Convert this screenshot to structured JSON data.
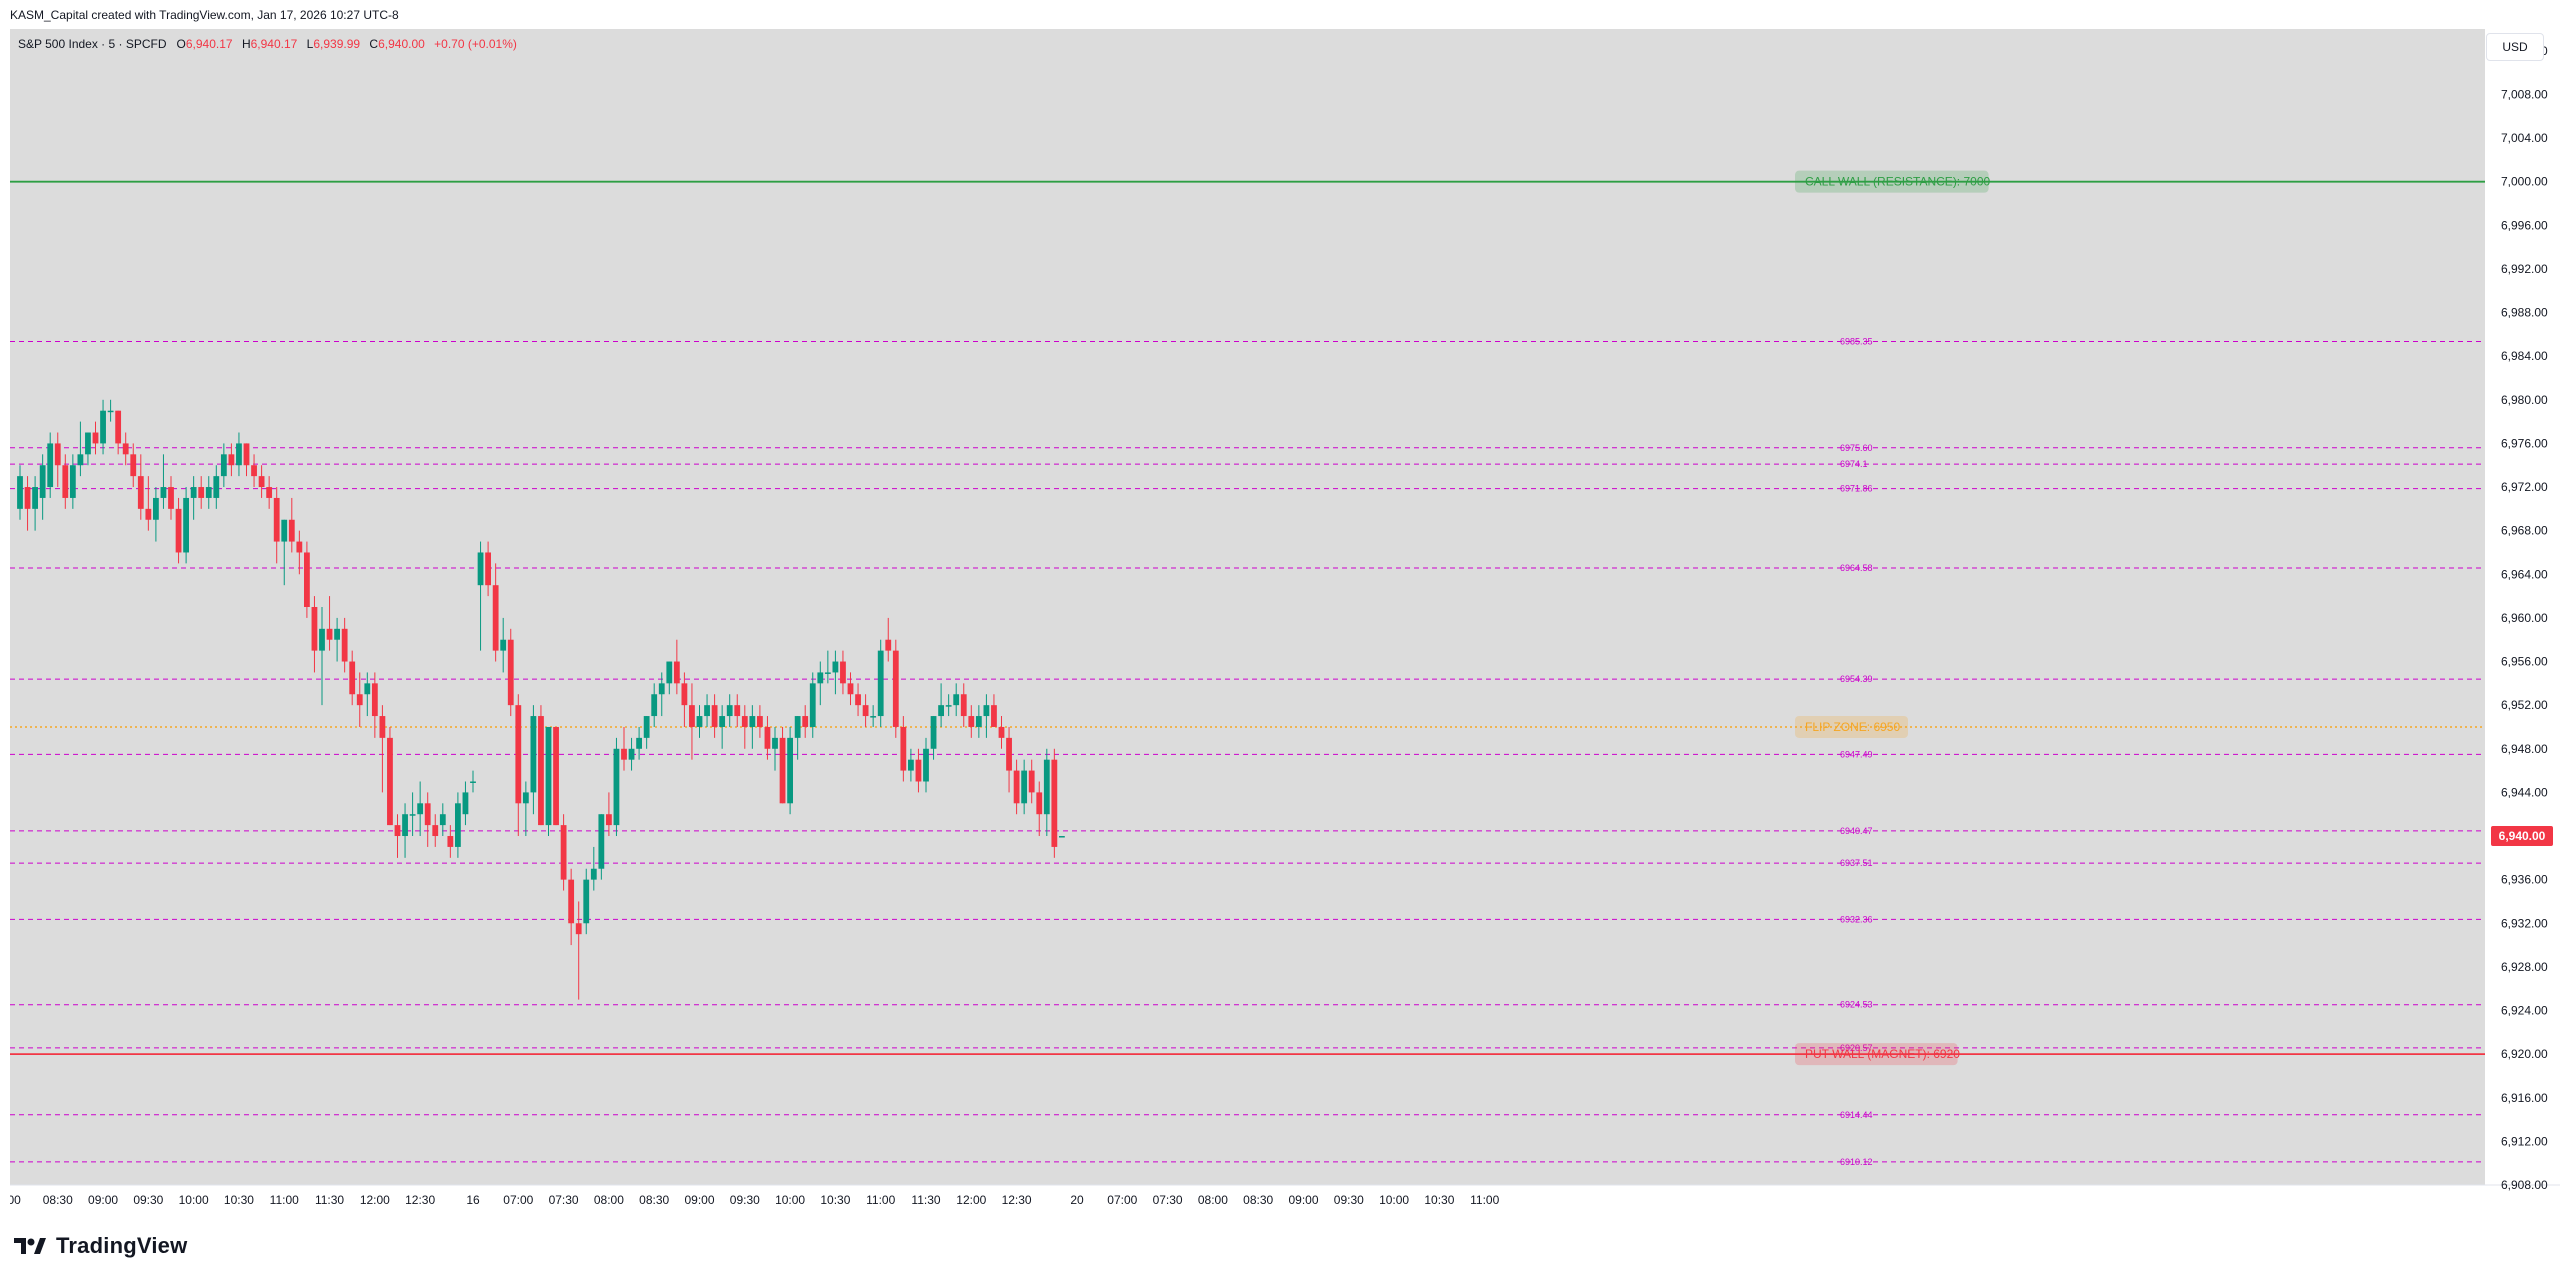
{
  "header": {
    "credit": "KASM_Capital created with TradingView.com, Jan 17, 2026 10:27 UTC-8"
  },
  "legend": {
    "symbol": "S&P 500 Index · 5 · SPCFD",
    "o_label": "O",
    "o_value": "6,940.17",
    "h_label": "H",
    "h_value": "6,940.17",
    "l_label": "L",
    "l_value": "6,939.99",
    "c_label": "C",
    "c_value": "6,940.00",
    "change": "+0.70 (+0.01%)"
  },
  "currency_button": "USD",
  "brand": "TradingView",
  "colors": {
    "up": "#089981",
    "down": "#f23645",
    "background": "#dcdcdc",
    "level_line": "#cc00cc",
    "call_wall": "#2e9e44",
    "put_wall": "#f23645",
    "flip_zone": "#f5a623"
  },
  "chart_data": {
    "type": "candlestick",
    "ylim": [
      6908,
      7014
    ],
    "yticks": [
      "6,908.00",
      "6,912.00",
      "6,916.00",
      "6,920.00",
      "6,924.00",
      "6,928.00",
      "6,932.00",
      "6,936.00",
      "6,940.00",
      "6,944.00",
      "6,948.00",
      "6,952.00",
      "6,956.00",
      "6,960.00",
      "6,964.00",
      "6,968.00",
      "6,972.00",
      "6,976.00",
      "6,980.00",
      "6,984.00",
      "6,988.00",
      "6,992.00",
      "6,996.00",
      "7,000.00",
      "7,004.00",
      "7,008.00",
      "7,012.00"
    ],
    "ytick_values": [
      6908,
      6912,
      6916,
      6920,
      6924,
      6928,
      6932,
      6936,
      6940,
      6944,
      6948,
      6952,
      6956,
      6960,
      6964,
      6968,
      6972,
      6976,
      6980,
      6984,
      6988,
      6992,
      6996,
      7000,
      7004,
      7008,
      7012
    ],
    "xticks": [
      {
        "i": -1,
        "label": ":00"
      },
      {
        "i": 5,
        "label": "08:30"
      },
      {
        "i": 11,
        "label": "09:00"
      },
      {
        "i": 17,
        "label": "09:30"
      },
      {
        "i": 23,
        "label": "10:00"
      },
      {
        "i": 29,
        "label": "10:30"
      },
      {
        "i": 35,
        "label": "11:00"
      },
      {
        "i": 41,
        "label": "11:30"
      },
      {
        "i": 47,
        "label": "12:00"
      },
      {
        "i": 53,
        "label": "12:30"
      },
      {
        "i": 60,
        "label": "16"
      },
      {
        "i": 66,
        "label": "07:00"
      },
      {
        "i": 72,
        "label": "07:30"
      },
      {
        "i": 78,
        "label": "08:00"
      },
      {
        "i": 84,
        "label": "08:30"
      },
      {
        "i": 90,
        "label": "09:00"
      },
      {
        "i": 96,
        "label": "09:30"
      },
      {
        "i": 102,
        "label": "10:00"
      },
      {
        "i": 108,
        "label": "10:30"
      },
      {
        "i": 114,
        "label": "11:00"
      },
      {
        "i": 120,
        "label": "11:30"
      },
      {
        "i": 126,
        "label": "12:00"
      },
      {
        "i": 132,
        "label": "12:30"
      },
      {
        "i": 140,
        "label": "20"
      },
      {
        "i": 146,
        "label": "07:00"
      },
      {
        "i": 152,
        "label": "07:30"
      },
      {
        "i": 158,
        "label": "08:00"
      },
      {
        "i": 164,
        "label": "08:30"
      },
      {
        "i": 170,
        "label": "09:00"
      },
      {
        "i": 176,
        "label": "09:30"
      },
      {
        "i": 182,
        "label": "10:00"
      },
      {
        "i": 188,
        "label": "10:30"
      },
      {
        "i": 194,
        "label": "11:00"
      }
    ],
    "last_price": 6940.0,
    "last_price_label": "6,940.00",
    "levels": [
      {
        "value": 6985.35,
        "label": "6985.35"
      },
      {
        "value": 6975.6,
        "label": "6975.60"
      },
      {
        "value": 6974.1,
        "label": "6974.1"
      },
      {
        "value": 6971.86,
        "label": "6971.86"
      },
      {
        "value": 6964.58,
        "label": "6964.58"
      },
      {
        "value": 6954.39,
        "label": "6954.39"
      },
      {
        "value": 6947.49,
        "label": "6947.49"
      },
      {
        "value": 6940.47,
        "label": "6940.47"
      },
      {
        "value": 6937.51,
        "label": "6937.51"
      },
      {
        "value": 6932.36,
        "label": "6932.36"
      },
      {
        "value": 6924.53,
        "label": "6924.53"
      },
      {
        "value": 6920.57,
        "label": "6920.57"
      },
      {
        "value": 6914.44,
        "label": "6914.44"
      },
      {
        "value": 6910.12,
        "label": "6910.12"
      }
    ],
    "walls": [
      {
        "value": 7000,
        "label": "CALL WALL (RESISTANCE): 7000",
        "style": "solid",
        "color": "#2e9e44"
      },
      {
        "value": 6950,
        "label": "FLIP ZONE: 6950",
        "style": "dotted",
        "color": "#f5a623"
      },
      {
        "value": 6920,
        "label": "PUT WALL (MAGNET): 6920",
        "style": "solid",
        "color": "#f23645"
      }
    ],
    "candles": [
      {
        "o": 6970,
        "h": 6974,
        "l": 6969,
        "c": 6973
      },
      {
        "o": 6972,
        "h": 6973,
        "l": 6968,
        "c": 6970
      },
      {
        "o": 6970,
        "h": 6973,
        "l": 6968,
        "c": 6972
      },
      {
        "o": 6971,
        "h": 6975,
        "l": 6969,
        "c": 6974
      },
      {
        "o": 6972,
        "h": 6977,
        "l": 6971,
        "c": 6976
      },
      {
        "o": 6976,
        "h": 6977,
        "l": 6972,
        "c": 6974
      },
      {
        "o": 6974,
        "h": 6975,
        "l": 6970,
        "c": 6971
      },
      {
        "o": 6971,
        "h": 6975,
        "l": 6970,
        "c": 6974
      },
      {
        "o": 6974,
        "h": 6978,
        "l": 6973,
        "c": 6975
      },
      {
        "o": 6975,
        "h": 6977,
        "l": 6974,
        "c": 6977
      },
      {
        "o": 6977,
        "h": 6978,
        "l": 6975,
        "c": 6976
      },
      {
        "o": 6976,
        "h": 6980,
        "l": 6975,
        "c": 6979
      },
      {
        "o": 6979,
        "h": 6980,
        "l": 6978,
        "c": 6979
      },
      {
        "o": 6979,
        "h": 6979,
        "l": 6975,
        "c": 6976
      },
      {
        "o": 6976,
        "h": 6977,
        "l": 6974,
        "c": 6975
      },
      {
        "o": 6975,
        "h": 6976,
        "l": 6972,
        "c": 6973
      },
      {
        "o": 6973,
        "h": 6975,
        "l": 6969,
        "c": 6970
      },
      {
        "o": 6970,
        "h": 6973,
        "l": 6968,
        "c": 6969
      },
      {
        "o": 6969,
        "h": 6972,
        "l": 6967,
        "c": 6971
      },
      {
        "o": 6971,
        "h": 6975,
        "l": 6970,
        "c": 6972
      },
      {
        "o": 6972,
        "h": 6973,
        "l": 6969,
        "c": 6970
      },
      {
        "o": 6970,
        "h": 6971,
        "l": 6965,
        "c": 6966
      },
      {
        "o": 6966,
        "h": 6972,
        "l": 6965,
        "c": 6971
      },
      {
        "o": 6971,
        "h": 6973,
        "l": 6969,
        "c": 6972
      },
      {
        "o": 6972,
        "h": 6973,
        "l": 6970,
        "c": 6971
      },
      {
        "o": 6971,
        "h": 6973,
        "l": 6970,
        "c": 6972
      },
      {
        "o": 6971,
        "h": 6974,
        "l": 6970,
        "c": 6973
      },
      {
        "o": 6973,
        "h": 6976,
        "l": 6972,
        "c": 6975
      },
      {
        "o": 6975,
        "h": 6976,
        "l": 6973,
        "c": 6974
      },
      {
        "o": 6974,
        "h": 6977,
        "l": 6973,
        "c": 6976
      },
      {
        "o": 6976,
        "h": 6976,
        "l": 6973,
        "c": 6974
      },
      {
        "o": 6974,
        "h": 6975,
        "l": 6972,
        "c": 6973
      },
      {
        "o": 6973,
        "h": 6974,
        "l": 6971,
        "c": 6972
      },
      {
        "o": 6972,
        "h": 6973,
        "l": 6970,
        "c": 6971
      },
      {
        "o": 6971,
        "h": 6972,
        "l": 6965,
        "c": 6967
      },
      {
        "o": 6967,
        "h": 6969,
        "l": 6963,
        "c": 6969
      },
      {
        "o": 6969,
        "h": 6971,
        "l": 6966,
        "c": 6967
      },
      {
        "o": 6967,
        "h": 6968,
        "l": 6964,
        "c": 6966
      },
      {
        "o": 6966,
        "h": 6967,
        "l": 6960,
        "c": 6961
      },
      {
        "o": 6961,
        "h": 6962,
        "l": 6955,
        "c": 6957
      },
      {
        "o": 6957,
        "h": 6961,
        "l": 6952,
        "c": 6959
      },
      {
        "o": 6959,
        "h": 6962,
        "l": 6957,
        "c": 6958
      },
      {
        "o": 6958,
        "h": 6960,
        "l": 6956,
        "c": 6959
      },
      {
        "o": 6959,
        "h": 6960,
        "l": 6955,
        "c": 6956
      },
      {
        "o": 6956,
        "h": 6957,
        "l": 6952,
        "c": 6953
      },
      {
        "o": 6953,
        "h": 6955,
        "l": 6950,
        "c": 6952
      },
      {
        "o": 6953,
        "h": 6955,
        "l": 6951,
        "c": 6954
      },
      {
        "o": 6954,
        "h": 6955,
        "l": 6949,
        "c": 6951
      },
      {
        "o": 6951,
        "h": 6952,
        "l": 6944,
        "c": 6949
      },
      {
        "o": 6949,
        "h": 6950,
        "l": 6941,
        "c": 6941
      },
      {
        "o": 6941,
        "h": 6942,
        "l": 6938,
        "c": 6940
      },
      {
        "o": 6940,
        "h": 6943,
        "l": 6938,
        "c": 6942
      },
      {
        "o": 6942,
        "h": 6944,
        "l": 6940,
        "c": 6942
      },
      {
        "o": 6942,
        "h": 6945,
        "l": 6940,
        "c": 6943
      },
      {
        "o": 6943,
        "h": 6944,
        "l": 6939,
        "c": 6941
      },
      {
        "o": 6941,
        "h": 6942,
        "l": 6939,
        "c": 6940
      },
      {
        "o": 6941,
        "h": 6943,
        "l": 6940,
        "c": 6942
      },
      {
        "o": 6940,
        "h": 6941,
        "l": 6938,
        "c": 6939
      },
      {
        "o": 6939,
        "h": 6944,
        "l": 6938,
        "c": 6943
      },
      {
        "o": 6942,
        "h": 6945,
        "l": 6941,
        "c": 6944
      },
      {
        "o": 6945,
        "h": 6946,
        "l": 6944,
        "c": 6945
      },
      {
        "o": 6963,
        "h": 6967,
        "l": 6957,
        "c": 6966
      },
      {
        "o": 6966,
        "h": 6967,
        "l": 6962,
        "c": 6963
      },
      {
        "o": 6963,
        "h": 6965,
        "l": 6956,
        "c": 6957
      },
      {
        "o": 6957,
        "h": 6960,
        "l": 6955,
        "c": 6958
      },
      {
        "o": 6958,
        "h": 6959,
        "l": 6951,
        "c": 6952
      },
      {
        "o": 6952,
        "h": 6953,
        "l": 6940,
        "c": 6943
      },
      {
        "o": 6943,
        "h": 6945,
        "l": 6940,
        "c": 6944
      },
      {
        "o": 6944,
        "h": 6952,
        "l": 6942,
        "c": 6951
      },
      {
        "o": 6951,
        "h": 6952,
        "l": 6941,
        "c": 6941
      },
      {
        "o": 6941,
        "h": 6950,
        "l": 6940,
        "c": 6950
      },
      {
        "o": 6950,
        "h": 6950,
        "l": 6941,
        "c": 6941
      },
      {
        "o": 6941,
        "h": 6942,
        "l": 6935,
        "c": 6936
      },
      {
        "o": 6936,
        "h": 6937,
        "l": 6930,
        "c": 6932
      },
      {
        "o": 6932,
        "h": 6934,
        "l": 6925,
        "c": 6931
      },
      {
        "o": 6932,
        "h": 6937,
        "l": 6931,
        "c": 6936
      },
      {
        "o": 6936,
        "h": 6939,
        "l": 6935,
        "c": 6937
      },
      {
        "o": 6937,
        "h": 6942,
        "l": 6936,
        "c": 6942
      },
      {
        "o": 6942,
        "h": 6944,
        "l": 6940,
        "c": 6941
      },
      {
        "o": 6941,
        "h": 6949,
        "l": 6940,
        "c": 6948
      },
      {
        "o": 6948,
        "h": 6950,
        "l": 6946,
        "c": 6947
      },
      {
        "o": 6947,
        "h": 6949,
        "l": 6946,
        "c": 6948
      },
      {
        "o": 6948,
        "h": 6950,
        "l": 6947,
        "c": 6949
      },
      {
        "o": 6949,
        "h": 6951,
        "l": 6948,
        "c": 6951
      },
      {
        "o": 6951,
        "h": 6954,
        "l": 6950,
        "c": 6953
      },
      {
        "o": 6953,
        "h": 6955,
        "l": 6951,
        "c": 6954
      },
      {
        "o": 6954,
        "h": 6956,
        "l": 6953,
        "c": 6956
      },
      {
        "o": 6956,
        "h": 6958,
        "l": 6953,
        "c": 6954
      },
      {
        "o": 6954,
        "h": 6955,
        "l": 6950,
        "c": 6952
      },
      {
        "o": 6952,
        "h": 6954,
        "l": 6947,
        "c": 6950
      },
      {
        "o": 6950,
        "h": 6952,
        "l": 6949,
        "c": 6951
      },
      {
        "o": 6951,
        "h": 6953,
        "l": 6950,
        "c": 6952
      },
      {
        "o": 6952,
        "h": 6953,
        "l": 6949,
        "c": 6950
      },
      {
        "o": 6950,
        "h": 6952,
        "l": 6948,
        "c": 6951
      },
      {
        "o": 6951,
        "h": 6953,
        "l": 6950,
        "c": 6952
      },
      {
        "o": 6952,
        "h": 6953,
        "l": 6950,
        "c": 6951
      },
      {
        "o": 6951,
        "h": 6952,
        "l": 6948,
        "c": 6950
      },
      {
        "o": 6950,
        "h": 6952,
        "l": 6948,
        "c": 6951
      },
      {
        "o": 6951,
        "h": 6952,
        "l": 6949,
        "c": 6950
      },
      {
        "o": 6950,
        "h": 6951,
        "l": 6947,
        "c": 6948
      },
      {
        "o": 6948,
        "h": 6950,
        "l": 6946,
        "c": 6949
      },
      {
        "o": 6949,
        "h": 6950,
        "l": 6943,
        "c": 6943
      },
      {
        "o": 6943,
        "h": 6950,
        "l": 6942,
        "c": 6949
      },
      {
        "o": 6949,
        "h": 6951,
        "l": 6947,
        "c": 6951
      },
      {
        "o": 6951,
        "h": 6952,
        "l": 6949,
        "c": 6950
      },
      {
        "o": 6950,
        "h": 6955,
        "l": 6949,
        "c": 6954
      },
      {
        "o": 6954,
        "h": 6956,
        "l": 6952,
        "c": 6955
      },
      {
        "o": 6955,
        "h": 6957,
        "l": 6954,
        "c": 6955
      },
      {
        "o": 6955,
        "h": 6957,
        "l": 6953,
        "c": 6956
      },
      {
        "o": 6956,
        "h": 6957,
        "l": 6953,
        "c": 6954
      },
      {
        "o": 6954,
        "h": 6955,
        "l": 6952,
        "c": 6953
      },
      {
        "o": 6953,
        "h": 6954,
        "l": 6951,
        "c": 6952
      },
      {
        "o": 6952,
        "h": 6953,
        "l": 6950,
        "c": 6951
      },
      {
        "o": 6951,
        "h": 6952,
        "l": 6950,
        "c": 6951
      },
      {
        "o": 6951,
        "h": 6958,
        "l": 6950,
        "c": 6957
      },
      {
        "o": 6958,
        "h": 6960,
        "l": 6956,
        "c": 6957
      },
      {
        "o": 6957,
        "h": 6958,
        "l": 6949,
        "c": 6950
      },
      {
        "o": 6950,
        "h": 6951,
        "l": 6945,
        "c": 6946
      },
      {
        "o": 6946,
        "h": 6948,
        "l": 6945,
        "c": 6947
      },
      {
        "o": 6947,
        "h": 6948,
        "l": 6944,
        "c": 6945
      },
      {
        "o": 6945,
        "h": 6949,
        "l": 6944,
        "c": 6948
      },
      {
        "o": 6948,
        "h": 6951,
        "l": 6947,
        "c": 6951
      },
      {
        "o": 6951,
        "h": 6954,
        "l": 6950,
        "c": 6952
      },
      {
        "o": 6952,
        "h": 6953,
        "l": 6951,
        "c": 6952
      },
      {
        "o": 6952,
        "h": 6954,
        "l": 6951,
        "c": 6953
      },
      {
        "o": 6953,
        "h": 6954,
        "l": 6950,
        "c": 6951
      },
      {
        "o": 6951,
        "h": 6952,
        "l": 6949,
        "c": 6950
      },
      {
        "o": 6950,
        "h": 6952,
        "l": 6949,
        "c": 6951
      },
      {
        "o": 6951,
        "h": 6953,
        "l": 6949,
        "c": 6952
      },
      {
        "o": 6952,
        "h": 6953,
        "l": 6950,
        "c": 6950
      },
      {
        "o": 6950,
        "h": 6951,
        "l": 6948,
        "c": 6949
      },
      {
        "o": 6949,
        "h": 6950,
        "l": 6944,
        "c": 6946
      },
      {
        "o": 6946,
        "h": 6947,
        "l": 6942,
        "c": 6943
      },
      {
        "o": 6943,
        "h": 6947,
        "l": 6942,
        "c": 6946
      },
      {
        "o": 6946,
        "h": 6947,
        "l": 6943,
        "c": 6944
      },
      {
        "o": 6944,
        "h": 6945,
        "l": 6940,
        "c": 6942
      },
      {
        "o": 6942,
        "h": 6948,
        "l": 6940,
        "c": 6947
      },
      {
        "o": 6947,
        "h": 6948,
        "l": 6938,
        "c": 6939
      },
      {
        "o": 6940,
        "h": 6940,
        "l": 6940,
        "c": 6940
      }
    ]
  }
}
